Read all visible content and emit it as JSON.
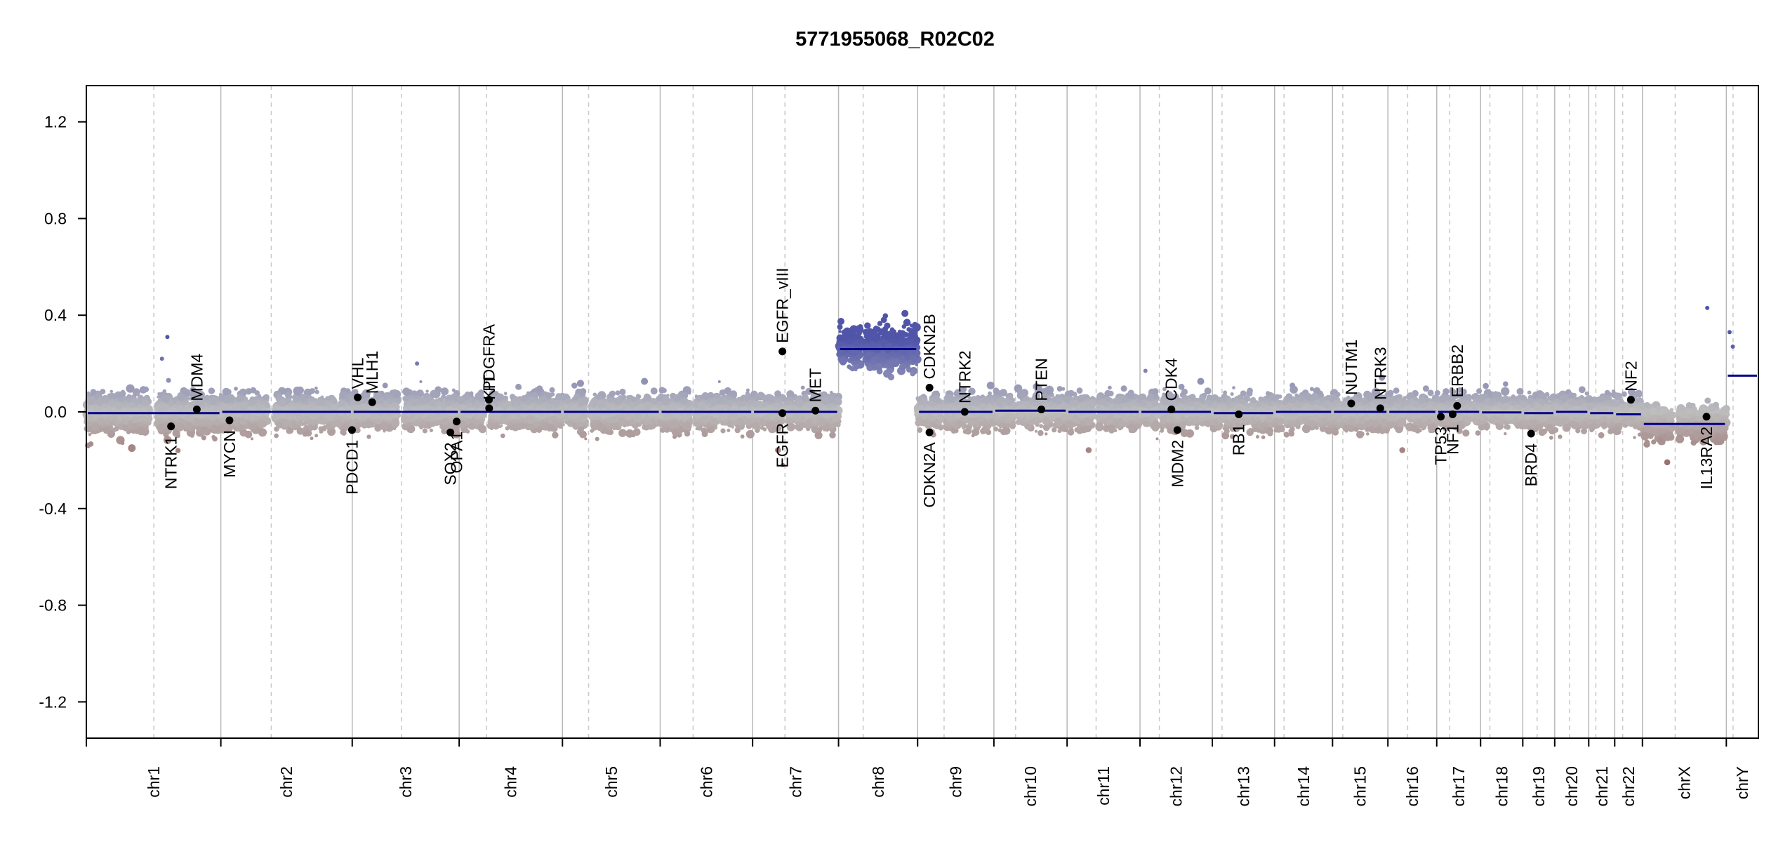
{
  "chart_data": {
    "type": "scatter",
    "title": "5771955068_R02C02",
    "ylim": [
      -1.35,
      1.35
    ],
    "y_ticks": [
      -1.2,
      -0.8,
      -0.4,
      0.0,
      0.4,
      0.8,
      1.2
    ],
    "y_tick_labels": [
      "-1.2",
      "-0.8",
      "-0.4",
      "0.0",
      "0.4",
      "0.8",
      "1.2"
    ],
    "grid": "chromosome boundaries (solid) and centromeres (dashed)",
    "colors": {
      "gain": "#4a4fa8",
      "loss": "#8a4a4a",
      "neutral": "#bcbcbc",
      "segment": "#00008b",
      "marker": "#000000"
    },
    "chromosomes": [
      {
        "name": "chr1",
        "size": 249.0,
        "cen": 125.0,
        "seg": -0.005,
        "spread": 0.07
      },
      {
        "name": "chr2",
        "size": 243.2,
        "cen": 93.3,
        "seg": 0.0,
        "spread": 0.06
      },
      {
        "name": "chr3",
        "size": 198.0,
        "cen": 91.0,
        "seg": 0.0,
        "spread": 0.06
      },
      {
        "name": "chr4",
        "size": 191.2,
        "cen": 50.4,
        "seg": 0.0,
        "spread": 0.06
      },
      {
        "name": "chr5",
        "size": 180.9,
        "cen": 48.4,
        "seg": 0.0,
        "spread": 0.06
      },
      {
        "name": "chr6",
        "size": 171.1,
        "cen": 61.0,
        "seg": 0.0,
        "spread": 0.06
      },
      {
        "name": "chr7",
        "size": 159.1,
        "cen": 59.9,
        "seg": 0.0,
        "spread": 0.06
      },
      {
        "name": "chr8",
        "size": 146.4,
        "cen": 45.6,
        "seg": 0.26,
        "spread": 0.07
      },
      {
        "name": "chr9",
        "size": 141.2,
        "cen": 49.0,
        "seg": 0.0,
        "spread": 0.06
      },
      {
        "name": "chr10",
        "size": 135.5,
        "cen": 40.2,
        "seg": 0.005,
        "spread": 0.06
      },
      {
        "name": "chr11",
        "size": 135.0,
        "cen": 53.7,
        "seg": 0.0,
        "spread": 0.06
      },
      {
        "name": "chr12",
        "size": 133.9,
        "cen": 35.8,
        "seg": 0.0,
        "spread": 0.06
      },
      {
        "name": "chr13",
        "size": 115.2,
        "cen": 17.9,
        "seg": -0.005,
        "spread": 0.06
      },
      {
        "name": "chr14",
        "size": 107.3,
        "cen": 17.6,
        "seg": 0.0,
        "spread": 0.06
      },
      {
        "name": "chr15",
        "size": 102.5,
        "cen": 19.0,
        "seg": 0.0,
        "spread": 0.06
      },
      {
        "name": "chr16",
        "size": 90.4,
        "cen": 36.6,
        "seg": 0.0,
        "spread": 0.06
      },
      {
        "name": "chr17",
        "size": 81.2,
        "cen": 24.0,
        "seg": 0.0,
        "spread": 0.06
      },
      {
        "name": "chr18",
        "size": 78.1,
        "cen": 17.2,
        "seg": -0.002,
        "spread": 0.06
      },
      {
        "name": "chr19",
        "size": 59.1,
        "cen": 26.5,
        "seg": -0.005,
        "spread": 0.06
      },
      {
        "name": "chr20",
        "size": 63.0,
        "cen": 27.5,
        "seg": 0.0,
        "spread": 0.06
      },
      {
        "name": "chr21",
        "size": 48.1,
        "cen": 13.2,
        "seg": -0.005,
        "spread": 0.06
      },
      {
        "name": "chr22",
        "size": 51.3,
        "cen": 14.7,
        "seg": -0.01,
        "spread": 0.06
      },
      {
        "name": "chrX",
        "size": 155.3,
        "cen": 60.6,
        "seg": -0.05,
        "spread": 0.06
      },
      {
        "name": "chrY",
        "size": 59.4,
        "cen": 12.5,
        "seg": 0.15,
        "spread": 0.02
      }
    ],
    "genes": [
      {
        "name": "NTRK1",
        "chr": "chr1",
        "pos": 156.8,
        "y": -0.06
      },
      {
        "name": "MDM4",
        "chr": "chr1",
        "pos": 204.5,
        "y": 0.01
      },
      {
        "name": "MYCN",
        "chr": "chr2",
        "pos": 16.0,
        "y": -0.035
      },
      {
        "name": "VHL",
        "chr": "chr3",
        "pos": 10.2,
        "y": 0.06
      },
      {
        "name": "MLH1",
        "chr": "chr3",
        "pos": 37.0,
        "y": 0.04
      },
      {
        "name": "PDCD1",
        "chr": "chr2",
        "pos": 242.8,
        "y": -0.075
      },
      {
        "name": "SOX2",
        "chr": "chr3",
        "pos": 181.7,
        "y": -0.085
      },
      {
        "name": "OPA1",
        "chr": "chr3",
        "pos": 193.3,
        "y": -0.04
      },
      {
        "name": "PDGFRA",
        "chr": "chr4",
        "pos": 55.1,
        "y": 0.05
      },
      {
        "name": "KIT",
        "chr": "chr4",
        "pos": 55.5,
        "y": 0.015
      },
      {
        "name": "EGFR",
        "chr": "chr7",
        "pos": 55.1,
        "y": -0.005
      },
      {
        "name": "EGFR_vIII",
        "chr": "chr7",
        "pos": 55.2,
        "y": 0.25
      },
      {
        "name": "MET",
        "chr": "chr7",
        "pos": 116.3,
        "y": 0.005
      },
      {
        "name": "CDKN2A",
        "chr": "chr9",
        "pos": 21.9,
        "y": -0.085
      },
      {
        "name": "CDKN2B",
        "chr": "chr9",
        "pos": 22.0,
        "y": 0.1
      },
      {
        "name": "CDK4",
        "chr": "chr12",
        "pos": 58.1,
        "y": 0.01
      },
      {
        "name": "PTEN",
        "chr": "chr10",
        "pos": 87.9,
        "y": 0.01
      },
      {
        "name": "NTRK2",
        "chr": "chr9",
        "pos": 87.2,
        "y": 0.0
      },
      {
        "name": "MDM2",
        "chr": "chr12",
        "pos": 69.2,
        "y": -0.075
      },
      {
        "name": "RB1",
        "chr": "chr13",
        "pos": 48.9,
        "y": -0.01
      },
      {
        "name": "NUTM1",
        "chr": "chr15",
        "pos": 34.6,
        "y": 0.035
      },
      {
        "name": "NTRK3",
        "chr": "chr15",
        "pos": 88.4,
        "y": 0.015
      },
      {
        "name": "TP53",
        "chr": "chr17",
        "pos": 7.6,
        "y": -0.02
      },
      {
        "name": "NF1",
        "chr": "chr17",
        "pos": 29.4,
        "y": -0.01
      },
      {
        "name": "ERBB2",
        "chr": "chr17",
        "pos": 37.8,
        "y": 0.025
      },
      {
        "name": "BRD4",
        "chr": "chr19",
        "pos": 15.4,
        "y": -0.09
      },
      {
        "name": "NF2",
        "chr": "chr22",
        "pos": 30.0,
        "y": 0.05
      },
      {
        "name": "IL13RA2",
        "chr": "chrX",
        "pos": 118.6,
        "y": -0.02
      }
    ],
    "down_labels": [
      "NTRK1",
      "MYCN",
      "PDCD1",
      "SOX2",
      "OPA1",
      "EGFR",
      "CDKN2A",
      "MDM2",
      "RB1",
      "TP53",
      "NF1",
      "BRD4",
      "IL13RA2"
    ],
    "outliers": [
      {
        "chr": "chr1",
        "pos": 150.0,
        "y": 0.31
      },
      {
        "chr": "chr1",
        "pos": 140.0,
        "y": 0.22
      },
      {
        "chr": "chrX",
        "pos": 120.0,
        "y": 0.43
      },
      {
        "chr": "chrY",
        "pos": 6.0,
        "y": 0.33
      },
      {
        "chr": "chrY",
        "pos": 12.0,
        "y": 0.27
      },
      {
        "chr": "chr7",
        "pos": 56.0,
        "y": -0.22
      },
      {
        "chr": "chr3",
        "pos": 120.0,
        "y": 0.2
      },
      {
        "chr": "chr12",
        "pos": 10.0,
        "y": 0.17
      }
    ]
  }
}
